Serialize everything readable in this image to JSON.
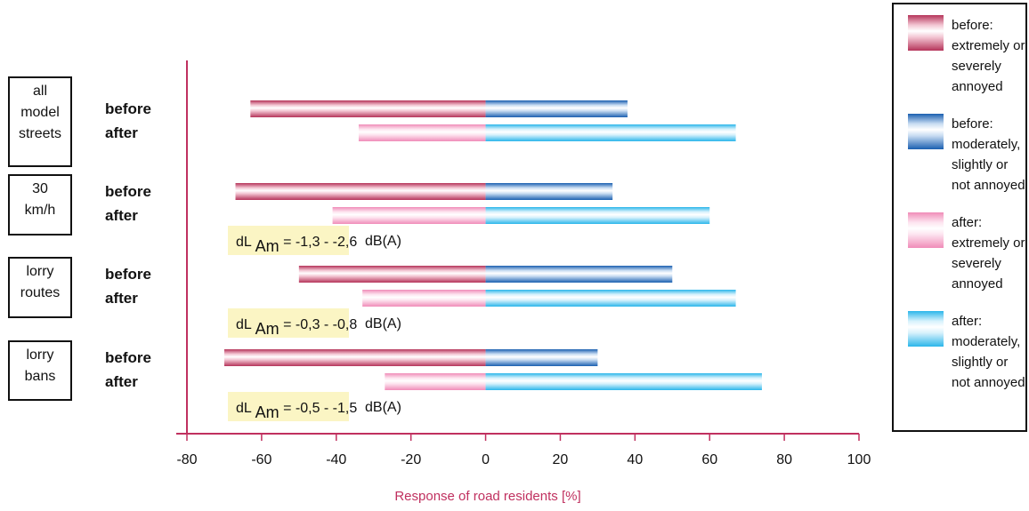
{
  "chart_data": {
    "type": "bar",
    "orientation": "horizontal",
    "stacked_diverging": true,
    "xlabel": "Response of road residents [%]",
    "xlim": [
      -80,
      100
    ],
    "x_ticks": [
      -80,
      -60,
      -40,
      -20,
      0,
      20,
      40,
      60,
      80,
      100
    ],
    "legend_position": "right",
    "groups": [
      {
        "label_lines": [
          "all",
          "model",
          "streets"
        ],
        "bars": [
          {
            "label": "before",
            "annoyed": -63,
            "not_annoyed": 38
          },
          {
            "label": "after",
            "annoyed": -34,
            "not_annoyed": 67
          }
        ],
        "note": null
      },
      {
        "label_lines": [
          "30",
          "km/h"
        ],
        "bars": [
          {
            "label": "before",
            "annoyed": -67,
            "not_annoyed": 34
          },
          {
            "label": "after",
            "annoyed": -41,
            "not_annoyed": 60
          }
        ],
        "note": {
          "main": "dL",
          "sub": "Am",
          "value": "= -1,3 - -2,6",
          "unit": "dB(A)"
        }
      },
      {
        "label_lines": [
          "lorry",
          "routes"
        ],
        "bars": [
          {
            "label": "before",
            "annoyed": -50,
            "not_annoyed": 50
          },
          {
            "label": "after",
            "annoyed": -33,
            "not_annoyed": 67
          }
        ],
        "note": {
          "main": "dL",
          "sub": "Am",
          "value": "= -0,3 - -0,8",
          "unit": "dB(A)"
        }
      },
      {
        "label_lines": [
          "lorry",
          "bans"
        ],
        "bars": [
          {
            "label": "before",
            "annoyed": -70,
            "not_annoyed": 30
          },
          {
            "label": "after",
            "annoyed": -27,
            "not_annoyed": 74
          }
        ],
        "note": {
          "main": "dL",
          "sub": "Am",
          "value": "= -0,5 - -1,5",
          "unit": "dB(A)"
        }
      }
    ],
    "series": [
      {
        "key": "before_annoyed",
        "name_lines": [
          "before:",
          "extremely or",
          "severely",
          "annoyed"
        ],
        "color": "#b5345a",
        "light": "#f3c6d3"
      },
      {
        "key": "before_not",
        "name_lines": [
          "before:",
          "moderately,",
          "slightly or",
          "not annoyed"
        ],
        "color": "#1a5fb0",
        "light": "#c8dcf2"
      },
      {
        "key": "after_annoyed",
        "name_lines": [
          "after:",
          "extremely or",
          "severely",
          "annoyed"
        ],
        "color": "#f08cb8",
        "light": "#fde4ef"
      },
      {
        "key": "after_not",
        "name_lines": [
          "after:",
          "moderately,",
          "slightly or",
          "not annoyed"
        ],
        "color": "#2bb6ea",
        "light": "#d6f1fc"
      }
    ],
    "colors": {
      "axis": "#c0305f",
      "xlabel": "#c0305f",
      "note_bg": "#fbf5c4"
    }
  }
}
